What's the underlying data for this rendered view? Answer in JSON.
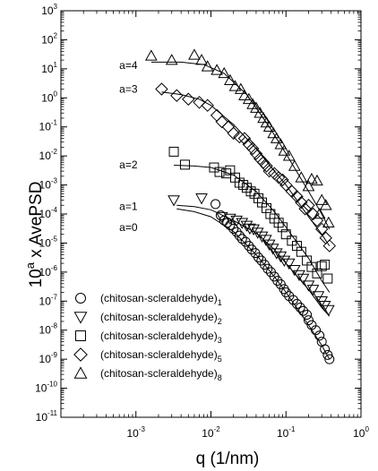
{
  "chart_data": {
    "type": "scatter",
    "title": "",
    "xlabel": "q (1/nm)",
    "ylabel_base": "10",
    "ylabel_exp": "a",
    "ylabel_rest": " x AvePSD",
    "xscale": "log",
    "yscale": "log",
    "xlim": [
      0.0001,
      1
    ],
    "ylim": [
      1e-11,
      1000
    ],
    "grid": false,
    "legend_position": "bottom-left",
    "x_ticks": [
      {
        "value": 0.001,
        "base": "10",
        "exp": "-3"
      },
      {
        "value": 0.01,
        "base": "10",
        "exp": "-2"
      },
      {
        "value": 0.1,
        "base": "10",
        "exp": "-1"
      },
      {
        "value": 1,
        "base": "10",
        "exp": "0"
      }
    ],
    "y_ticks": [
      {
        "value": 1000,
        "base": "10",
        "exp": "3"
      },
      {
        "value": 100,
        "base": "10",
        "exp": "2"
      },
      {
        "value": 10,
        "base": "10",
        "exp": "1"
      },
      {
        "value": 1,
        "base": "10",
        "exp": "0"
      },
      {
        "value": 0.1,
        "base": "10",
        "exp": "-1"
      },
      {
        "value": 0.01,
        "base": "10",
        "exp": "-2"
      },
      {
        "value": 0.001,
        "base": "10",
        "exp": "-3"
      },
      {
        "value": 0.0001,
        "base": "10",
        "exp": "-4"
      },
      {
        "value": 1e-05,
        "base": "10",
        "exp": "-5"
      },
      {
        "value": 1e-06,
        "base": "10",
        "exp": "-6"
      },
      {
        "value": 1e-07,
        "base": "10",
        "exp": "-7"
      },
      {
        "value": 1e-08,
        "base": "10",
        "exp": "-8"
      },
      {
        "value": 1e-09,
        "base": "10",
        "exp": "-9"
      },
      {
        "value": 1e-10,
        "base": "10",
        "exp": "-10"
      },
      {
        "value": 1e-11,
        "base": "10",
        "exp": "-11"
      }
    ],
    "annotations": [
      {
        "text": "a=4",
        "x": 0.0006,
        "y": 13
      },
      {
        "text": "a=3",
        "x": 0.0006,
        "y": 2.0
      },
      {
        "text": "a=2",
        "x": 0.0006,
        "y": 0.005
      },
      {
        "text": "a=1",
        "x": 0.0006,
        "y": 0.00018
      },
      {
        "text": "a=0",
        "x": 0.0006,
        "y": 3.5e-05
      }
    ],
    "series": [
      {
        "name_base": "(chitosan-scleraldehyde)",
        "name_sub": "1",
        "marker": "circle",
        "points": [
          [
            0.0115,
            0.00022
          ],
          [
            0.0135,
            9e-05
          ],
          [
            0.015,
            6e-05
          ],
          [
            0.0165,
            5e-05
          ],
          [
            0.018,
            4.1e-05
          ],
          [
            0.02,
            3.1e-05
          ],
          [
            0.022,
            2.4e-05
          ],
          [
            0.024,
            1.8e-05
          ],
          [
            0.026,
            1.4e-05
          ],
          [
            0.029,
            1.1e-05
          ],
          [
            0.032,
            8e-06
          ],
          [
            0.035,
            6e-06
          ],
          [
            0.039,
            4.5e-06
          ],
          [
            0.043,
            3.2e-06
          ],
          [
            0.047,
            2.5e-06
          ],
          [
            0.052,
            1.8e-06
          ],
          [
            0.057,
            1.3e-06
          ],
          [
            0.063,
            1e-06
          ],
          [
            0.07,
            7e-07
          ],
          [
            0.077,
            5e-07
          ],
          [
            0.085,
            3.8e-07
          ],
          [
            0.094,
            2.6e-07
          ],
          [
            0.1,
            2e-07
          ],
          [
            0.11,
            1.5e-07
          ],
          [
            0.125,
            1.1e-07
          ],
          [
            0.14,
            8e-08
          ],
          [
            0.155,
            6e-08
          ],
          [
            0.17,
            4.6e-08
          ],
          [
            0.19,
            3.4e-08
          ],
          [
            0.2,
            2.2e-08
          ],
          [
            0.22,
            1.5e-08
          ],
          [
            0.25,
            1e-08
          ],
          [
            0.28,
            6.5e-09
          ],
          [
            0.3,
            4e-09
          ],
          [
            0.33,
            2.2e-09
          ],
          [
            0.36,
            1.4e-09
          ],
          [
            0.38,
            1e-09
          ]
        ],
        "fit": [
          [
            0.0035,
            0.00015
          ],
          [
            0.006,
            0.00012
          ],
          [
            0.01,
            8e-05
          ],
          [
            0.02,
            2.5e-05
          ],
          [
            0.04,
            4e-06
          ],
          [
            0.07,
            7e-07
          ],
          [
            0.1,
            2e-07
          ],
          [
            0.2,
            1.5e-08
          ],
          [
            0.3,
            3e-09
          ],
          [
            0.38,
            1e-09
          ]
        ]
      },
      {
        "name_base": "(chitosan-scleraldehyde)",
        "name_sub": "2",
        "marker": "triangle-down",
        "points": [
          [
            0.0032,
            0.0003
          ],
          [
            0.0075,
            0.00035
          ],
          [
            0.014,
            8e-05
          ],
          [
            0.018,
            7e-05
          ],
          [
            0.022,
            6e-05
          ],
          [
            0.026,
            5e-05
          ],
          [
            0.03,
            4e-05
          ],
          [
            0.033,
            3.2e-05
          ],
          [
            0.037,
            3e-05
          ],
          [
            0.042,
            2.3e-05
          ],
          [
            0.048,
            1.7e-05
          ],
          [
            0.054,
            1.3e-05
          ],
          [
            0.06,
            9e-06
          ],
          [
            0.067,
            6.5e-06
          ],
          [
            0.075,
            4.5e-06
          ],
          [
            0.085,
            3.5e-06
          ],
          [
            0.095,
            2.5e-06
          ],
          [
            0.11,
            2e-06
          ],
          [
            0.13,
            1.2e-06
          ],
          [
            0.15,
            8e-07
          ],
          [
            0.17,
            6e-07
          ],
          [
            0.2,
            3.5e-07
          ],
          [
            0.23,
            2.5e-07
          ],
          [
            0.27,
            1.5e-07
          ],
          [
            0.3,
            1e-07
          ],
          [
            0.33,
            7e-08
          ],
          [
            0.37,
            5e-08
          ]
        ],
        "fit": [
          [
            0.0035,
            0.0002
          ],
          [
            0.006,
            0.00018
          ],
          [
            0.01,
            0.00014
          ],
          [
            0.02,
            6e-05
          ],
          [
            0.04,
            2.2e-05
          ],
          [
            0.07,
            6e-06
          ],
          [
            0.1,
            2e-06
          ],
          [
            0.2,
            2.5e-07
          ],
          [
            0.3,
            6e-08
          ],
          [
            0.38,
            3e-08
          ]
        ]
      },
      {
        "name_base": "(chitosan-scleraldehyde)",
        "name_sub": "3",
        "marker": "square",
        "points": [
          [
            0.0032,
            0.014
          ],
          [
            0.0045,
            0.005
          ],
          [
            0.011,
            0.004
          ],
          [
            0.013,
            0.0028
          ],
          [
            0.016,
            0.0025
          ],
          [
            0.018,
            0.0032
          ],
          [
            0.021,
            0.0018
          ],
          [
            0.024,
            0.0012
          ],
          [
            0.027,
            0.001
          ],
          [
            0.03,
            0.0008
          ],
          [
            0.034,
            0.0006
          ],
          [
            0.038,
            0.0005
          ],
          [
            0.043,
            0.00035
          ],
          [
            0.048,
            0.00025
          ],
          [
            0.055,
            0.00016
          ],
          [
            0.062,
            0.0001
          ],
          [
            0.07,
            7e-05
          ],
          [
            0.08,
            5e-05
          ],
          [
            0.09,
            3.5e-05
          ],
          [
            0.1,
            2e-05
          ],
          [
            0.12,
            1.2e-05
          ],
          [
            0.14,
            8e-06
          ],
          [
            0.16,
            5e-06
          ],
          [
            0.19,
            2.5e-06
          ],
          [
            0.22,
            1.5e-06
          ],
          [
            0.26,
            9e-07
          ],
          [
            0.3,
            1.6e-06
          ],
          [
            0.33,
            1.8e-06
          ],
          [
            0.36,
            6e-07
          ]
        ],
        "fit": [
          [
            0.0032,
            0.0048
          ],
          [
            0.006,
            0.0045
          ],
          [
            0.01,
            0.004
          ],
          [
            0.02,
            0.0022
          ],
          [
            0.04,
            0.0006
          ],
          [
            0.07,
            0.00012
          ],
          [
            0.1,
            3.5e-05
          ],
          [
            0.2,
            3e-06
          ],
          [
            0.3,
            5e-07
          ],
          [
            0.38,
            2e-07
          ]
        ]
      },
      {
        "name_base": "(chitosan-scleraldehyde)",
        "name_sub": "5",
        "marker": "diamond",
        "points": [
          [
            0.0022,
            2.0
          ],
          [
            0.0035,
            1.2
          ],
          [
            0.005,
            0.9
          ],
          [
            0.007,
            0.7
          ],
          [
            0.009,
            0.55
          ],
          [
            0.012,
            0.25
          ],
          [
            0.014,
            0.15
          ],
          [
            0.017,
            0.1
          ],
          [
            0.02,
            0.06
          ],
          [
            0.024,
            0.045
          ],
          [
            0.028,
            0.04
          ],
          [
            0.032,
            0.025
          ],
          [
            0.036,
            0.018
          ],
          [
            0.04,
            0.012
          ],
          [
            0.045,
            0.008
          ],
          [
            0.05,
            0.006
          ],
          [
            0.055,
            0.0045
          ],
          [
            0.06,
            0.003
          ],
          [
            0.07,
            0.0025
          ],
          [
            0.08,
            0.0018
          ],
          [
            0.09,
            0.0015
          ],
          [
            0.1,
            0.001
          ],
          [
            0.12,
            0.0006
          ],
          [
            0.14,
            0.0004
          ],
          [
            0.16,
            0.00025
          ],
          [
            0.18,
            0.00015
          ],
          [
            0.2,
            0.0002
          ],
          [
            0.23,
            0.0001
          ],
          [
            0.26,
            6e-05
          ],
          [
            0.3,
            3e-05
          ],
          [
            0.34,
            1.5e-05
          ],
          [
            0.38,
            8e-06
          ]
        ],
        "fit": [
          [
            0.0022,
            1.6
          ],
          [
            0.004,
            1.3
          ],
          [
            0.007,
            0.9
          ],
          [
            0.01,
            0.55
          ],
          [
            0.02,
            0.12
          ],
          [
            0.04,
            0.018
          ],
          [
            0.07,
            0.003
          ],
          [
            0.1,
            0.001
          ],
          [
            0.2,
            8e-05
          ],
          [
            0.3,
            2e-05
          ],
          [
            0.38,
            8e-06
          ]
        ]
      },
      {
        "name_base": "(chitosan-scleraldehyde)",
        "name_sub": "8",
        "marker": "triangle-up",
        "points": [
          [
            0.0016,
            28
          ],
          [
            0.003,
            20
          ],
          [
            0.006,
            30
          ],
          [
            0.0075,
            20
          ],
          [
            0.009,
            12
          ],
          [
            0.012,
            9
          ],
          [
            0.015,
            7
          ],
          [
            0.018,
            4
          ],
          [
            0.021,
            2.5
          ],
          [
            0.025,
            2
          ],
          [
            0.028,
            1.2
          ],
          [
            0.032,
            0.9
          ],
          [
            0.036,
            0.6
          ],
          [
            0.04,
            0.45
          ],
          [
            0.045,
            0.3
          ],
          [
            0.05,
            0.2
          ],
          [
            0.055,
            0.14
          ],
          [
            0.06,
            0.1
          ],
          [
            0.068,
            0.06
          ],
          [
            0.075,
            0.04
          ],
          [
            0.085,
            0.025
          ],
          [
            0.095,
            0.015
          ],
          [
            0.11,
            0.01
          ],
          [
            0.13,
            0.0045
          ],
          [
            0.16,
            0.0018
          ],
          [
            0.2,
            0.0009
          ],
          [
            0.22,
            0.0016
          ],
          [
            0.26,
            0.0014
          ],
          [
            0.28,
            0.0001
          ],
          [
            0.3,
            0.0003
          ],
          [
            0.34,
            0.0002
          ],
          [
            0.37,
            5e-05
          ]
        ],
        "fit": [
          [
            0.0016,
            17
          ],
          [
            0.004,
            17
          ],
          [
            0.008,
            14
          ],
          [
            0.015,
            7
          ],
          [
            0.03,
            1.3
          ],
          [
            0.06,
            0.1
          ],
          [
            0.1,
            0.012
          ],
          [
            0.2,
            0.0006
          ],
          [
            0.3,
            0.0001
          ],
          [
            0.38,
            3e-05
          ]
        ]
      }
    ]
  }
}
